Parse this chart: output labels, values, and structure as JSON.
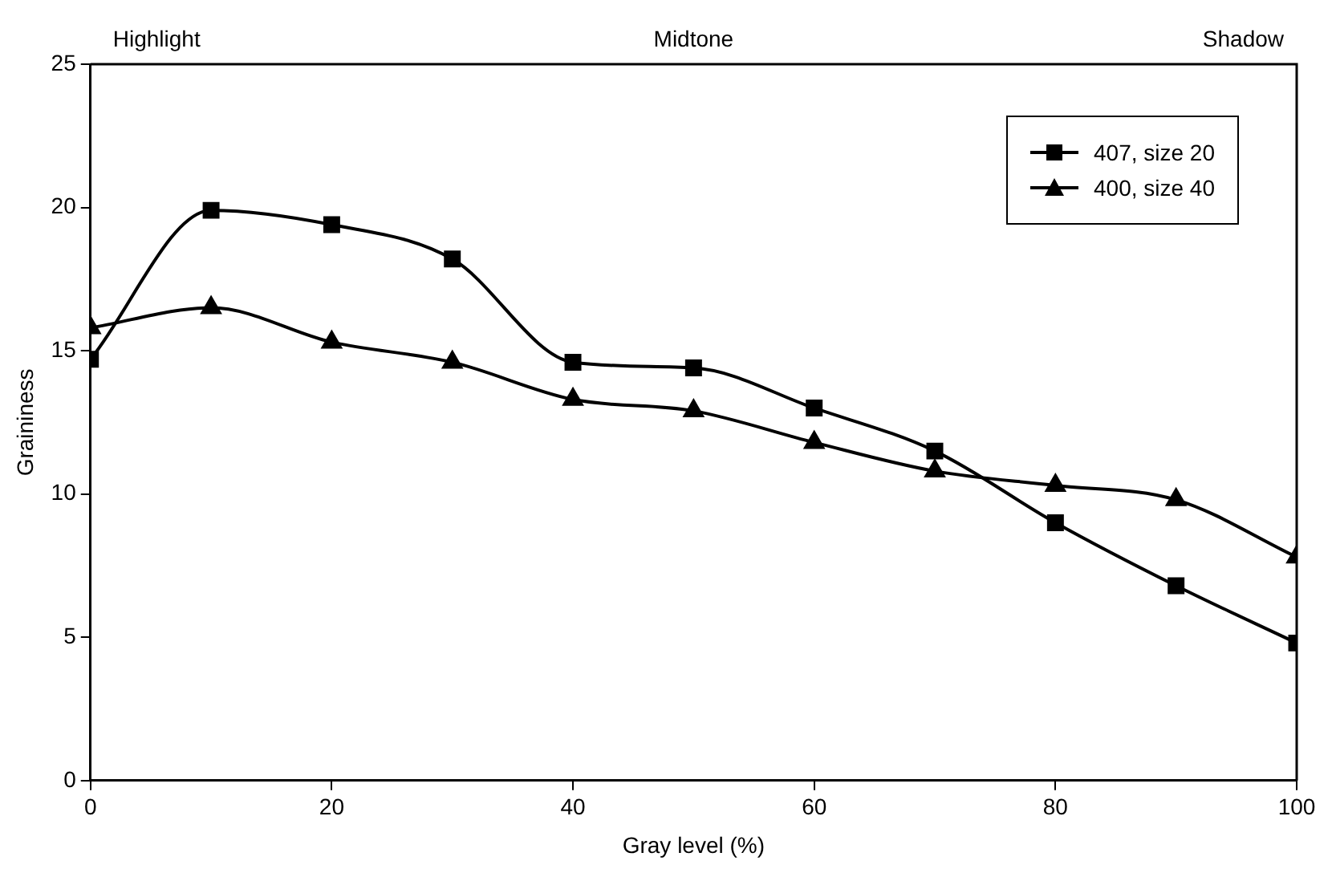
{
  "chart_data": {
    "type": "line",
    "xlabel": "Gray level (%)",
    "ylabel": "Graininess",
    "x": [
      0,
      10,
      20,
      30,
      40,
      50,
      60,
      70,
      80,
      90,
      100
    ],
    "series": [
      {
        "name": "407, size 20",
        "color": "#000000",
        "marker": "square",
        "values": [
          14.7,
          19.9,
          19.4,
          18.2,
          14.6,
          14.4,
          13.0,
          11.5,
          9.0,
          6.8,
          4.8
        ]
      },
      {
        "name": "400, size 40",
        "color": "#000000",
        "marker": "triangle",
        "values": [
          15.8,
          16.5,
          15.3,
          14.6,
          13.3,
          12.9,
          11.8,
          10.8,
          10.3,
          9.8,
          7.8
        ]
      }
    ],
    "xlim": [
      0,
      100
    ],
    "xticks": [
      0,
      20,
      40,
      60,
      80,
      100
    ],
    "ylim": [
      0,
      25
    ],
    "yticks": [
      0,
      5,
      10,
      15,
      20,
      25
    ],
    "grid": false,
    "legend": "top right",
    "annotations": [
      "Highlight",
      "Midtone",
      "Shadow"
    ]
  }
}
